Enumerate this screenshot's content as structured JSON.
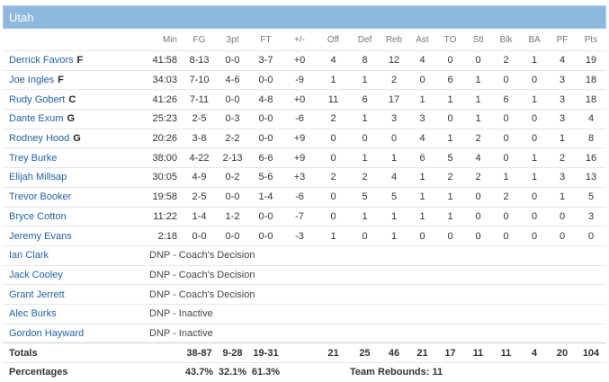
{
  "team": "Utah",
  "columns": [
    "Min",
    "FG",
    "3pt",
    "FT",
    "+/-",
    "Off",
    "Def",
    "Reb",
    "Ast",
    "TO",
    "Stl",
    "Blk",
    "BA",
    "PF",
    "Pts"
  ],
  "players": [
    {
      "name": "Derrick Favors",
      "pos": "F",
      "stats": [
        "41:58",
        "8-13",
        "0-0",
        "3-7",
        "+0",
        "4",
        "8",
        "12",
        "4",
        "0",
        "0",
        "2",
        "1",
        "4",
        "19"
      ]
    },
    {
      "name": "Joe Ingles",
      "pos": "F",
      "stats": [
        "34:03",
        "7-10",
        "4-6",
        "0-0",
        "-9",
        "1",
        "1",
        "2",
        "0",
        "6",
        "1",
        "0",
        "0",
        "3",
        "18"
      ]
    },
    {
      "name": "Rudy Gobert",
      "pos": "C",
      "stats": [
        "41:26",
        "7-11",
        "0-0",
        "4-8",
        "+0",
        "11",
        "6",
        "17",
        "1",
        "1",
        "1",
        "6",
        "1",
        "3",
        "18"
      ]
    },
    {
      "name": "Dante Exum",
      "pos": "G",
      "stats": [
        "25:23",
        "2-5",
        "0-3",
        "0-0",
        "-6",
        "2",
        "1",
        "3",
        "3",
        "0",
        "1",
        "0",
        "0",
        "3",
        "4"
      ]
    },
    {
      "name": "Rodney Hood",
      "pos": "G",
      "stats": [
        "20:26",
        "3-8",
        "2-2",
        "0-0",
        "+9",
        "0",
        "0",
        "0",
        "4",
        "1",
        "2",
        "0",
        "0",
        "1",
        "8"
      ]
    },
    {
      "name": "Trey Burke",
      "pos": "",
      "stats": [
        "38:00",
        "4-22",
        "2-13",
        "6-6",
        "+9",
        "0",
        "1",
        "1",
        "6",
        "5",
        "4",
        "0",
        "1",
        "2",
        "16"
      ]
    },
    {
      "name": "Elijah Millsap",
      "pos": "",
      "stats": [
        "30:05",
        "4-9",
        "0-2",
        "5-6",
        "+3",
        "2",
        "2",
        "4",
        "1",
        "2",
        "2",
        "1",
        "1",
        "3",
        "13"
      ]
    },
    {
      "name": "Trevor Booker",
      "pos": "",
      "stats": [
        "19:58",
        "2-5",
        "0-0",
        "1-4",
        "-6",
        "0",
        "5",
        "5",
        "1",
        "1",
        "0",
        "2",
        "0",
        "1",
        "5"
      ]
    },
    {
      "name": "Bryce Cotton",
      "pos": "",
      "stats": [
        "11:22",
        "1-4",
        "1-2",
        "0-0",
        "-7",
        "0",
        "1",
        "1",
        "1",
        "1",
        "0",
        "0",
        "0",
        "0",
        "3"
      ]
    },
    {
      "name": "Jeremy Evans",
      "pos": "",
      "stats": [
        "2:18",
        "0-0",
        "0-0",
        "0-0",
        "-3",
        "1",
        "0",
        "1",
        "0",
        "0",
        "0",
        "0",
        "0",
        "0",
        "0"
      ]
    }
  ],
  "dnp": [
    {
      "name": "Ian Clark",
      "reason": "DNP - Coach's Decision"
    },
    {
      "name": "Jack Cooley",
      "reason": "DNP - Coach's Decision"
    },
    {
      "name": "Grant Jerrett",
      "reason": "DNP - Coach's Decision"
    },
    {
      "name": "Alec Burks",
      "reason": "DNP - Inactive"
    },
    {
      "name": "Gordon Hayward",
      "reason": "DNP - Inactive"
    }
  ],
  "totals": {
    "label": "Totals",
    "stats": [
      "",
      "38-87",
      "9-28",
      "19-31",
      "",
      "21",
      "25",
      "46",
      "21",
      "17",
      "11",
      "11",
      "4",
      "20",
      "104"
    ]
  },
  "percentages": {
    "label": "Percentages",
    "fg": "43.7%",
    "three": "32.1%",
    "ft": "61.3%",
    "team_rebounds": "Team Rebounds: 11"
  }
}
